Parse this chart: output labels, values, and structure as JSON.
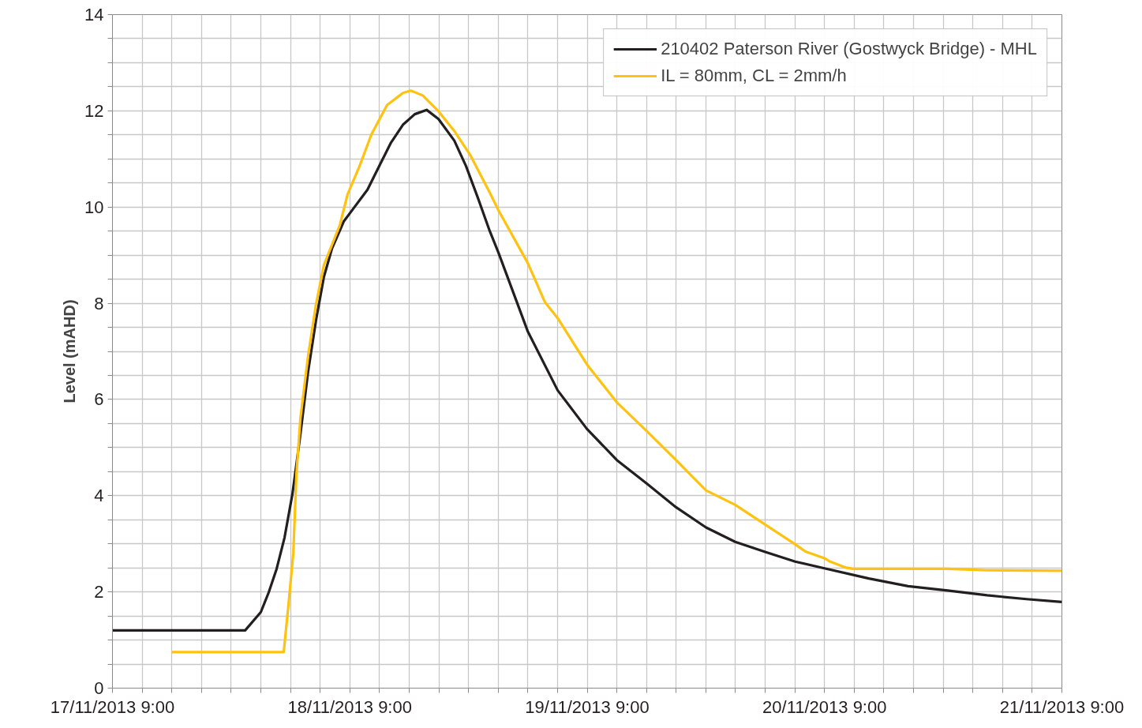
{
  "chart_data": {
    "type": "line",
    "ylabel": "Level (mAHD)",
    "xlim": [
      "2013-11-17T09:00",
      "2013-11-21T09:00"
    ],
    "xticks": [
      {
        "value": "2013-11-17T09:00",
        "label": "17/11/2013 9:00"
      },
      {
        "value": "2013-11-17T12:00",
        "label": null
      },
      {
        "value": "2013-11-17T15:00",
        "label": null
      },
      {
        "value": "2013-11-17T18:00",
        "label": null
      },
      {
        "value": "2013-11-17T21:00",
        "label": null
      },
      {
        "value": "2013-11-18T00:00",
        "label": null
      },
      {
        "value": "2013-11-18T03:00",
        "label": null
      },
      {
        "value": "2013-11-18T06:00",
        "label": null
      },
      {
        "value": "2013-11-18T09:00",
        "label": "18/11/2013 9:00"
      },
      {
        "value": "2013-11-18T12:00",
        "label": null
      },
      {
        "value": "2013-11-18T15:00",
        "label": null
      },
      {
        "value": "2013-11-18T18:00",
        "label": null
      },
      {
        "value": "2013-11-18T21:00",
        "label": null
      },
      {
        "value": "2013-11-19T00:00",
        "label": null
      },
      {
        "value": "2013-11-19T03:00",
        "label": null
      },
      {
        "value": "2013-11-19T06:00",
        "label": null
      },
      {
        "value": "2013-11-19T09:00",
        "label": "19/11/2013 9:00"
      },
      {
        "value": "2013-11-19T12:00",
        "label": null
      },
      {
        "value": "2013-11-19T15:00",
        "label": null
      },
      {
        "value": "2013-11-19T18:00",
        "label": null
      },
      {
        "value": "2013-11-19T21:00",
        "label": null
      },
      {
        "value": "2013-11-20T00:00",
        "label": null
      },
      {
        "value": "2013-11-20T03:00",
        "label": null
      },
      {
        "value": "2013-11-20T06:00",
        "label": null
      },
      {
        "value": "2013-11-20T09:00",
        "label": "20/11/2013 9:00"
      },
      {
        "value": "2013-11-20T12:00",
        "label": null
      },
      {
        "value": "2013-11-20T15:00",
        "label": null
      },
      {
        "value": "2013-11-20T18:00",
        "label": null
      },
      {
        "value": "2013-11-20T21:00",
        "label": null
      },
      {
        "value": "2013-11-21T00:00",
        "label": null
      },
      {
        "value": "2013-11-21T03:00",
        "label": null
      },
      {
        "value": "2013-11-21T06:00",
        "label": null
      },
      {
        "value": "2013-11-21T09:00",
        "label": "21/11/2013 9:00"
      }
    ],
    "ylim": [
      0,
      14
    ],
    "yticks": [
      0,
      {
        "value": 0.5,
        "label": null
      },
      {
        "value": 1,
        "label": null
      },
      {
        "value": 1.5,
        "label": null
      },
      2,
      {
        "value": 2.5,
        "label": null
      },
      {
        "value": 3,
        "label": null
      },
      {
        "value": 3.5,
        "label": null
      },
      4,
      {
        "value": 4.5,
        "label": null
      },
      {
        "value": 5,
        "label": null
      },
      {
        "value": 5.5,
        "label": null
      },
      6,
      {
        "value": 6.5,
        "label": null
      },
      {
        "value": 7,
        "label": null
      },
      {
        "value": 7.5,
        "label": null
      },
      8,
      {
        "value": 8.5,
        "label": null
      },
      {
        "value": 9,
        "label": null
      },
      {
        "value": 9.5,
        "label": null
      },
      10,
      {
        "value": 10.5,
        "label": null
      },
      {
        "value": 11,
        "label": null
      },
      {
        "value": 11.5,
        "label": null
      },
      12,
      {
        "value": 12.5,
        "label": null
      },
      {
        "value": 13,
        "label": null
      },
      {
        "value": 13.5,
        "label": null
      },
      14
    ],
    "grid": true,
    "legend": "top right",
    "marker": "none",
    "line_style": "solid",
    "series": [
      {
        "name": "210402 Paterson River (Gostwyck Bridge) - MHL",
        "color": "#231f20",
        "x": [
          "2013-11-17T09:00",
          "2013-11-17T22:25",
          "2013-11-18T00:00",
          "2013-11-18T00:48",
          "2013-11-18T01:36",
          "2013-11-18T02:24",
          "2013-11-18T03:12",
          "2013-11-18T04:00",
          "2013-11-18T04:47",
          "2013-11-18T05:35",
          "2013-11-18T06:23",
          "2013-11-18T07:11",
          "2013-11-18T08:23",
          "2013-11-18T09:35",
          "2013-11-18T10:47",
          "2013-11-18T11:58",
          "2013-11-18T13:10",
          "2013-11-18T14:22",
          "2013-11-18T15:34",
          "2013-11-18T16:46",
          "2013-11-18T17:58",
          "2013-11-18T19:34",
          "2013-11-18T20:45",
          "2013-11-18T21:57",
          "2013-11-18T23:09",
          "2013-11-19T00:02",
          "2013-11-19T02:59",
          "2013-11-19T06:01",
          "2013-11-19T08:58",
          "2013-11-19T12:00",
          "2013-11-19T15:02",
          "2013-11-19T17:59",
          "2013-11-19T21:01",
          "2013-11-19T23:58",
          "2013-11-20T03:00",
          "2013-11-20T06:02",
          "2013-11-20T08:59",
          "2013-11-20T13:28",
          "2013-11-20T17:27",
          "2013-11-20T21:26",
          "2013-11-21T01:26",
          "2013-11-21T05:25",
          "2013-11-21T09:00"
        ],
        "values": [
          1.2,
          1.2,
          1.58,
          1.99,
          2.48,
          3.13,
          4.04,
          5.27,
          6.58,
          7.65,
          8.55,
          9.13,
          9.7,
          10.03,
          10.36,
          10.85,
          11.34,
          11.71,
          11.93,
          12.02,
          11.83,
          11.38,
          10.85,
          10.19,
          9.5,
          9.05,
          7.42,
          6.19,
          5.39,
          4.74,
          4.25,
          3.76,
          3.34,
          3.04,
          2.83,
          2.63,
          2.49,
          2.28,
          2.12,
          2.03,
          1.93,
          1.85,
          1.79
        ]
      },
      {
        "name": "IL = 80mm, CL = 2mm/h",
        "color": "#ffc20e",
        "x": [
          "2013-11-17T15:00",
          "2013-11-18T02:19",
          "2013-11-18T02:48",
          "2013-11-18T03:17",
          "2013-11-18T03:36",
          "2013-11-18T04:00",
          "2013-11-18T04:47",
          "2013-11-18T05:35",
          "2013-11-18T06:23",
          "2013-11-18T07:11",
          "2013-11-18T07:59",
          "2013-11-18T08:47",
          "2013-11-18T09:59",
          "2013-11-18T11:11",
          "2013-11-18T12:46",
          "2013-11-18T14:22",
          "2013-11-18T15:10",
          "2013-11-18T16:22",
          "2013-11-18T17:58",
          "2013-11-18T19:34",
          "2013-11-18T21:09",
          "2013-11-18T23:09",
          "2013-11-19T00:02",
          "2013-11-19T02:59",
          "2013-11-19T04:44",
          "2013-11-19T06:01",
          "2013-11-19T08:58",
          "2013-11-19T12:00",
          "2013-11-19T15:02",
          "2013-11-19T17:59",
          "2013-11-19T21:01",
          "2013-11-19T23:58",
          "2013-11-20T03:00",
          "2013-11-20T06:02",
          "2013-11-20T07:04",
          "2013-11-20T08:59",
          "2013-11-20T09:28",
          "2013-11-20T11:04",
          "2013-11-20T11:52",
          "2013-11-20T21:26",
          "2013-11-21T01:26",
          "2013-11-21T09:00"
        ],
        "values": [
          0.75,
          0.75,
          1.74,
          2.8,
          4.45,
          5.6,
          6.91,
          7.98,
          8.8,
          9.21,
          9.62,
          10.27,
          10.85,
          11.51,
          12.12,
          12.37,
          12.42,
          12.32,
          11.99,
          11.58,
          11.09,
          10.3,
          9.93,
          8.84,
          8.02,
          7.69,
          6.73,
          5.94,
          5.34,
          4.74,
          4.11,
          3.81,
          3.4,
          2.99,
          2.84,
          2.7,
          2.64,
          2.51,
          2.48,
          2.48,
          2.45,
          2.44
        ]
      }
    ]
  }
}
